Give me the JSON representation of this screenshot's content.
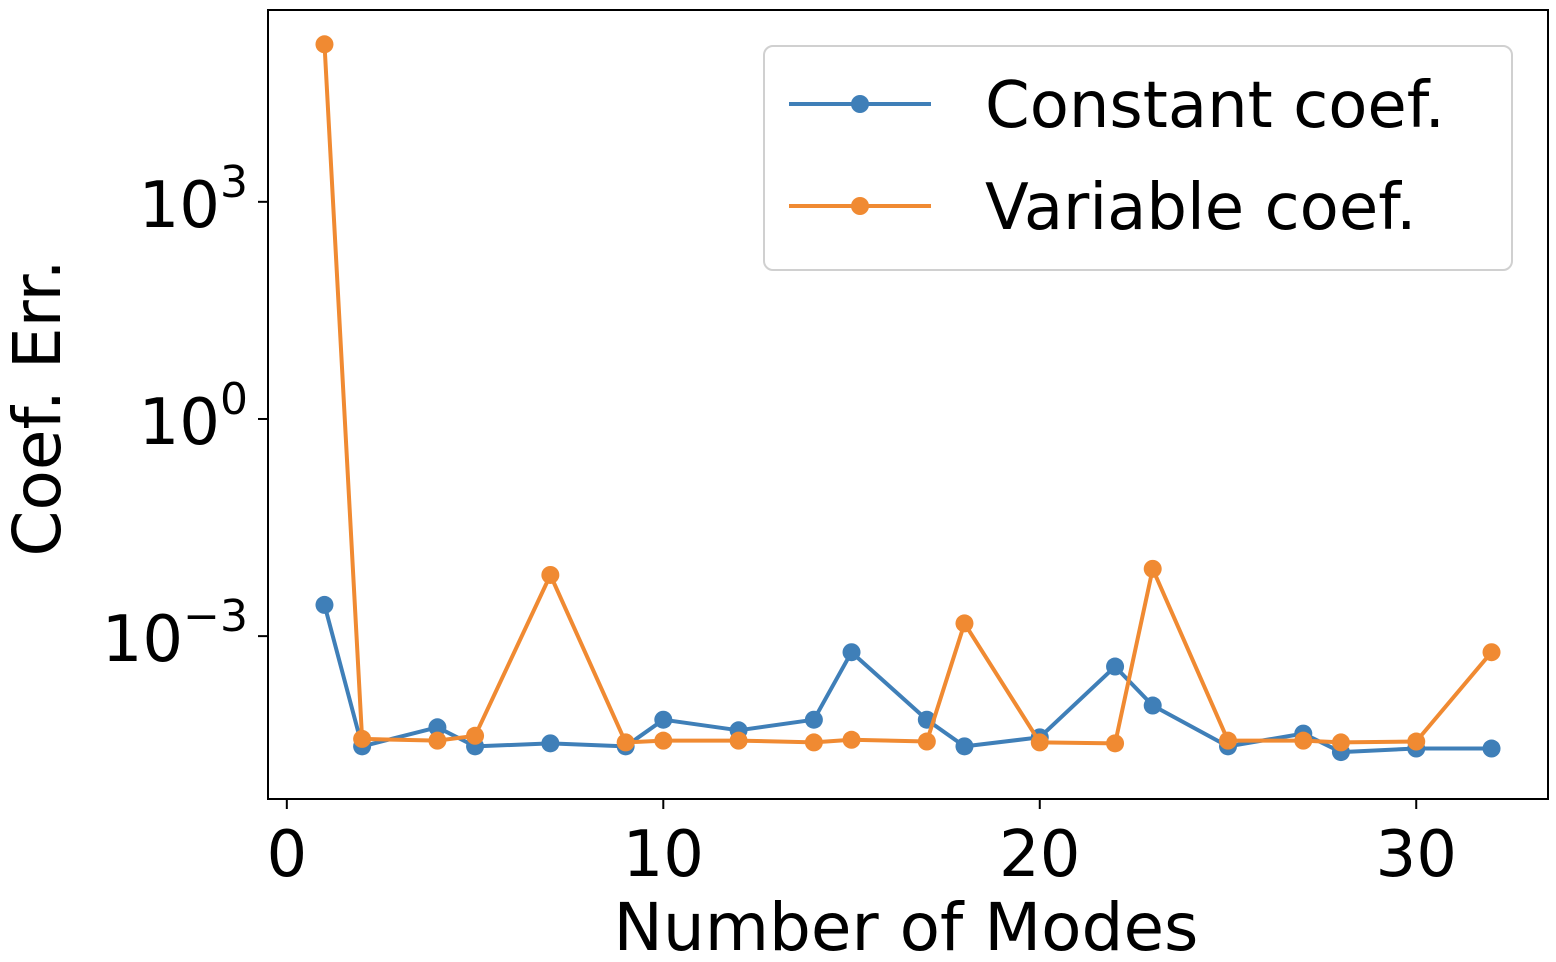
{
  "chart_data": {
    "type": "line",
    "title": "",
    "xlabel": "Number of Modes",
    "ylabel": "Coef. Err.",
    "yscale": "log",
    "xlim": [
      -0.5,
      33.5
    ],
    "ylim_log10": [
      -5.25,
      5.65
    ],
    "xticks": [
      0,
      10,
      20,
      30
    ],
    "xtick_labels": [
      "0",
      "10",
      "20",
      "30"
    ],
    "yticks_log10": [
      3,
      0,
      -3
    ],
    "ytick_labels": [
      {
        "base": "10",
        "exp": "3"
      },
      {
        "base": "10",
        "exp": "0"
      },
      {
        "base": "10",
        "exp": "−3"
      }
    ],
    "legend_position": "top-right",
    "series": [
      {
        "name": "Constant coef.",
        "color": "#3f7fb8",
        "x": [
          1,
          2,
          4,
          5,
          7,
          9,
          10,
          12,
          14,
          15,
          17,
          18,
          20,
          22,
          23,
          25,
          27,
          28,
          30,
          32
        ],
        "y": [
          0.0027,
          3e-05,
          5.5e-05,
          3e-05,
          3.3e-05,
          3e-05,
          7e-05,
          5e-05,
          7e-05,
          0.0006,
          7e-05,
          3e-05,
          4e-05,
          0.00038,
          0.00011,
          3e-05,
          4.5e-05,
          2.5e-05,
          2.8e-05,
          2.8e-05
        ]
      },
      {
        "name": "Variable coef.",
        "color": "#f08a32",
        "x": [
          1,
          2,
          4,
          5,
          7,
          9,
          10,
          12,
          14,
          15,
          17,
          18,
          20,
          22,
          23,
          25,
          27,
          28,
          30,
          32
        ],
        "y": [
          150000,
          3.8e-05,
          3.6e-05,
          4.2e-05,
          0.007,
          3.4e-05,
          3.6e-05,
          3.6e-05,
          3.4e-05,
          3.7e-05,
          3.5e-05,
          0.0015,
          3.4e-05,
          3.3e-05,
          0.0085,
          3.6e-05,
          3.6e-05,
          3.4e-05,
          3.5e-05,
          0.0006
        ]
      }
    ]
  }
}
